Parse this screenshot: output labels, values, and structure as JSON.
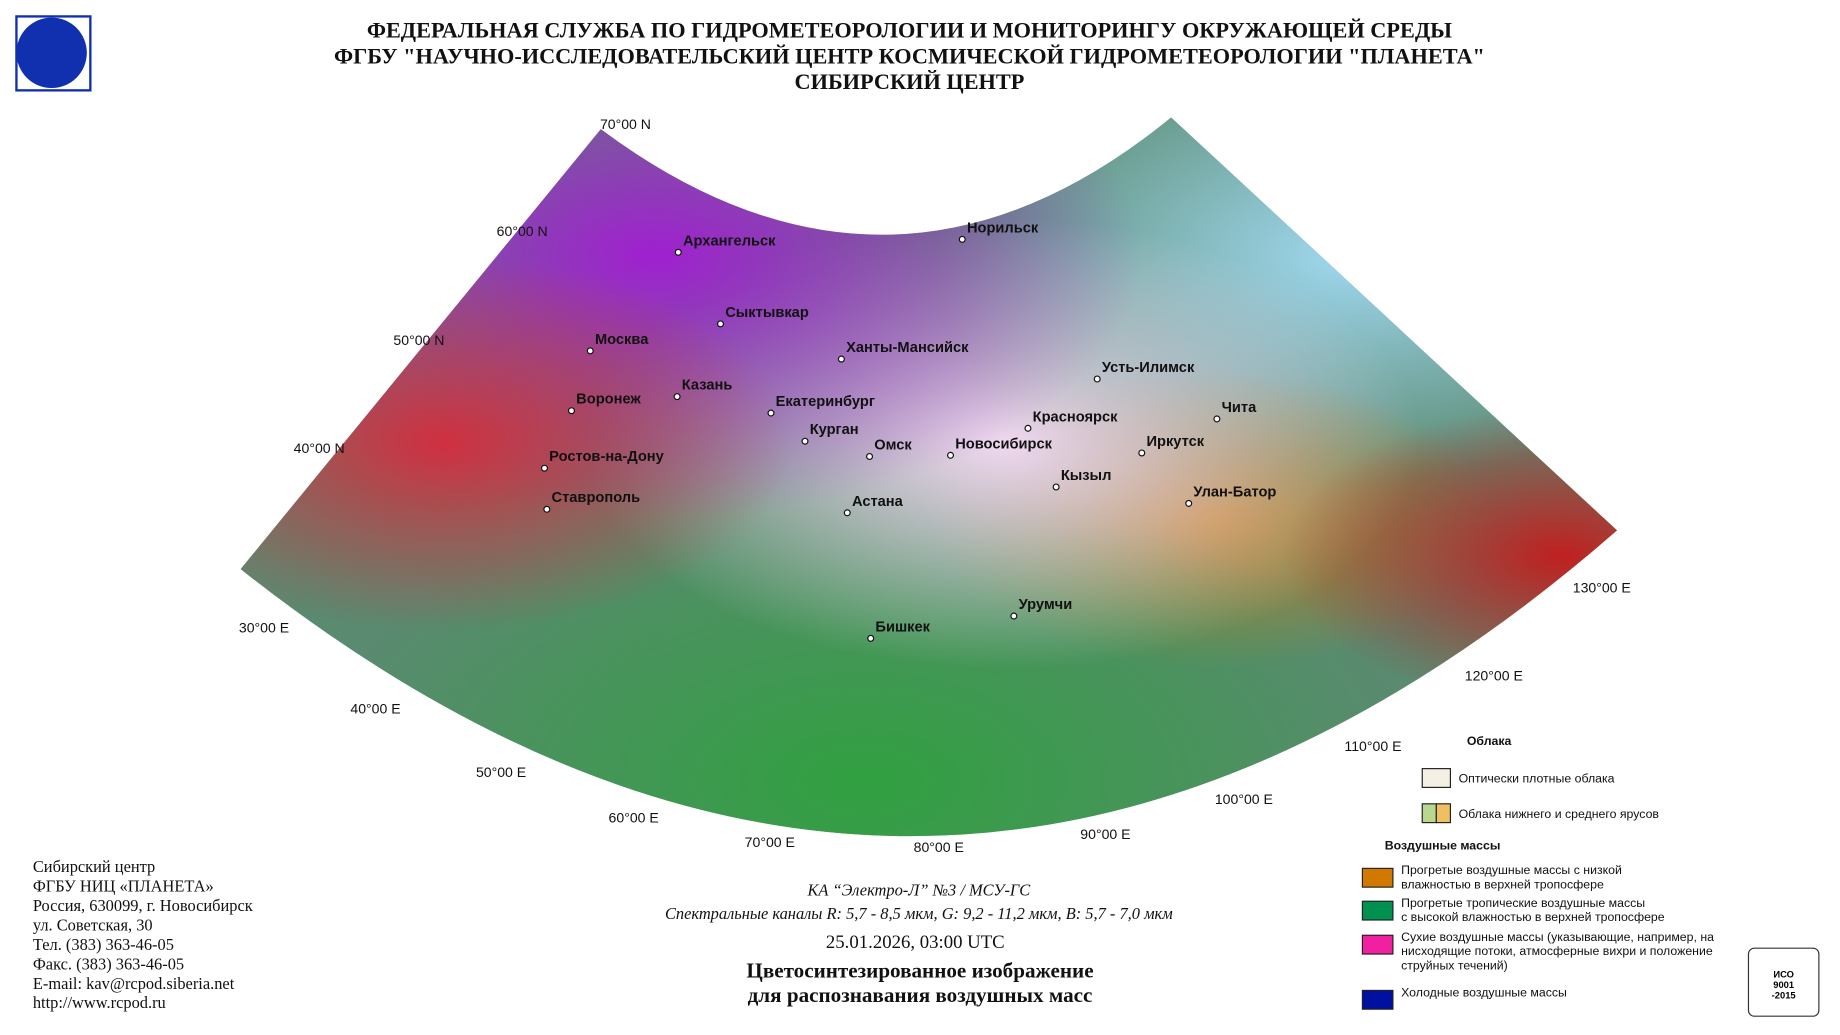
{
  "header": {
    "lines": [
      "ФЕДЕРАЛЬНАЯ СЛУЖБА ПО ГИДРОМЕТЕОРОЛОГИИ И МОНИТОРИНГУ ОКРУЖАЮЩЕЙ СРЕДЫ",
      "ФГБУ \"НАУЧНО-ИССЛЕДОВАТЕЛЬСКИЙ ЦЕНТР КОСМИЧЕСКОЙ ГИДРОМЕТЕОРОЛОГИИ \"ПЛАНЕТА\"",
      "СИБИРСКИЙ ЦЕНТР"
    ]
  },
  "map": {
    "latitudes": [
      "70°00 N",
      "60°00 N",
      "50°00 N",
      "40°00 N"
    ],
    "longitudes": [
      "30°00 E",
      "40°00 E",
      "50°00 E",
      "60°00 E",
      "70°00 E",
      "80°00 E",
      "90°00 E",
      "100°00 E",
      "110°00 E",
      "120°00 E",
      "130°00 E"
    ],
    "cities": [
      "Архангельск",
      "Норильск",
      "Сыктывкар",
      "Москва",
      "Ханты-Мансийск",
      "Усть-Илимск",
      "Казань",
      "Воронеж",
      "Екатеринбург",
      "Красноярск",
      "Чита",
      "Курган",
      "Иркутск",
      "Омск",
      "Новосибирск",
      "Ростов-на-Дону",
      "Кызыл",
      "Улан-Батор",
      "Ставрополь",
      "Астана",
      "Урумчи",
      "Бишкек"
    ]
  },
  "legend": {
    "clouds_title": "Облака",
    "clouds": [
      [
        "Оптически плотные облака"
      ],
      [
        "Облака нижнего и среднего ярусов"
      ]
    ],
    "air_title": "Воздушные массы",
    "air": [
      [
        "Прогретые воздушные массы с низкой",
        "влажностью в верхней тропосфере"
      ],
      [
        "Прогретые тропичеcкие воздушные массы",
        "с высокой влажностью в верхней тропосфере"
      ],
      [
        "Сухие воздушные массы (указывающие, например, на",
        "нисходящие потоки, атмосферные вихри и положение",
        "струйных течений)"
      ],
      [
        "Холодные воздушные массы"
      ]
    ]
  },
  "contact": {
    "lines": [
      "Сибирский центр",
      "ФГБУ НИЦ «ПЛАНЕТА»",
      "Россия, 630099, г. Новосибирск",
      "ул. Советская, 30",
      "Тел. (383) 363-46-05",
      "Факс. (383) 363-46-05",
      "E-mail: kav@rcpod.siberia.net",
      "http://www.rcpod.ru"
    ]
  },
  "caption": {
    "satellite": "КА “Электро-Л” №3 / МСУ-ГС",
    "channels": "Спектральные каналы R: 5,7 - 8,5 мкм, G: 9,2 - 11,2 мкм, B: 5,7 - 7,0 мкм",
    "datetime": "25.01.2026, 03:00 UTC",
    "title": [
      "Цветосинтезированное изображение",
      "для распознавания воздушных масс"
    ]
  },
  "badge": {
    "lines": [
      "ИСО",
      "9001",
      "-2015"
    ]
  }
}
